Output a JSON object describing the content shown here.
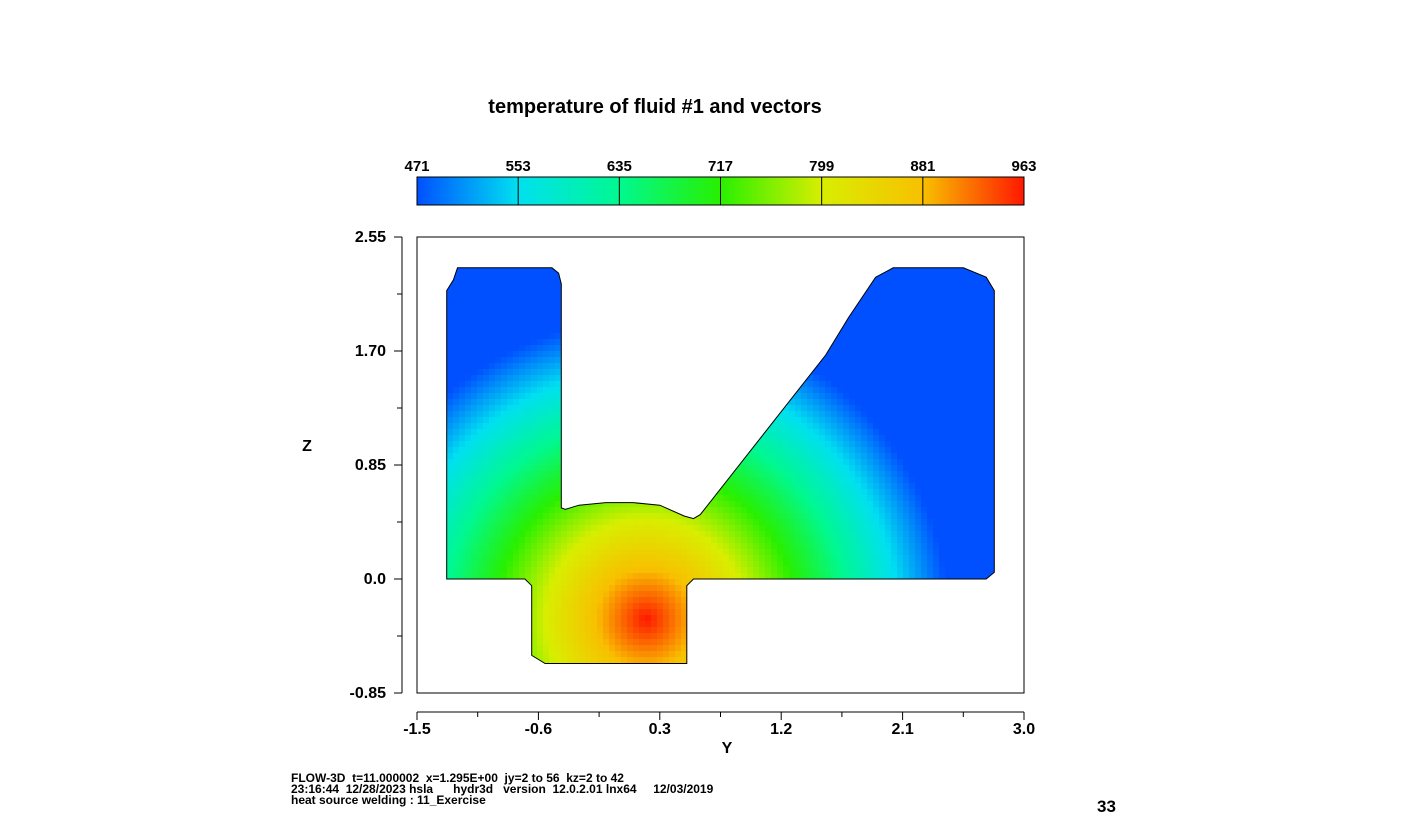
{
  "chart_data": {
    "type": "heatmap",
    "title": "temperature of fluid #1 and vectors",
    "xlabel": "Y",
    "ylabel": "Z",
    "xlim": [
      -1.5,
      3.0
    ],
    "ylim": [
      -0.85,
      2.55
    ],
    "x_ticks": [
      "-1.5",
      "-0.6",
      "0.3",
      "1.2",
      "2.1",
      "3.0"
    ],
    "x_tick_values": [
      -1.5,
      -0.6,
      0.3,
      1.2,
      2.1,
      3.0
    ],
    "y_ticks": [
      "2.55",
      "1.70",
      "0.85",
      "0.0",
      "-0.85"
    ],
    "y_tick_values": [
      2.55,
      1.7,
      0.85,
      0.0,
      -0.85
    ],
    "colorbar": {
      "labels": [
        "471",
        "553",
        "635",
        "717",
        "799",
        "881",
        "963"
      ],
      "values": [
        471,
        553,
        635,
        717,
        799,
        881,
        963
      ],
      "min": 471,
      "max": 963
    },
    "hot_spot": {
      "y": 0.2,
      "z": -0.3,
      "value": 963
    },
    "colors": {
      "c471": "#0050ff",
      "c553": "#00e0f0",
      "c635": "#00f890",
      "c717": "#28f000",
      "c799": "#d8ee00",
      "c881": "#f8c000",
      "c963": "#ff1800"
    }
  },
  "footer": {
    "line1": "FLOW-3D  t=11.000002  x=1.295E+00  jy=2 to 56  kz=2 to 42",
    "line2": "23:16:44  12/28/2023 hsla      hydr3d   version  12.0.2.01 lnx64     12/03/2019",
    "line3": "heat source welding : 11_Exercise"
  },
  "page_number": "33"
}
